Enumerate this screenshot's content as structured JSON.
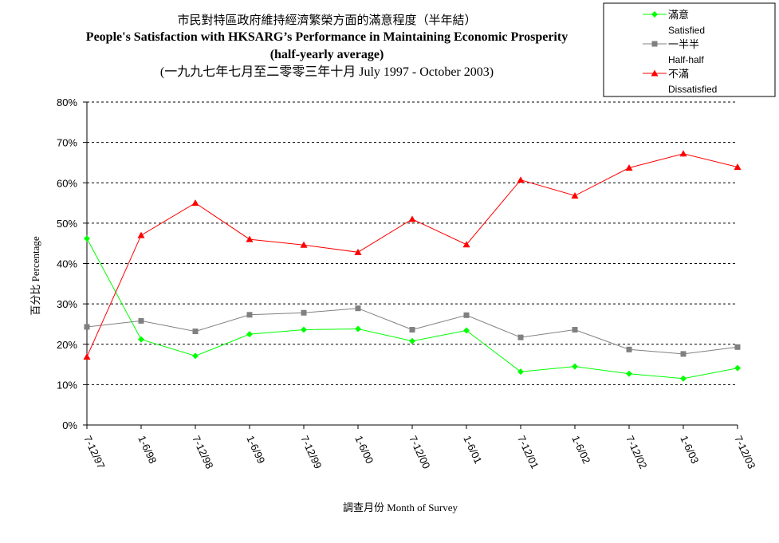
{
  "chart_data": {
    "type": "line",
    "title_zh": "市民對特區政府維持經濟繁榮方面的滿意程度（半年結）",
    "title_en": "People's Satisfaction with HKSARG’s Performance in Maintaining Economic Prosperity",
    "subtitle": "(half-yearly average)",
    "period": "(一九九七年七月至二零零三年十月 July 1997 - October 2003)",
    "xlabel": "調查月份 Month of Survey",
    "ylabel": "百分比 Percentage",
    "ylim": [
      0,
      80
    ],
    "yticks": [
      "0%",
      "10%",
      "20%",
      "30%",
      "40%",
      "50%",
      "60%",
      "70%",
      "80%"
    ],
    "grid": true,
    "legend_position": "top-right",
    "categories": [
      "7-12/97",
      "1-6/98",
      "7-12/98",
      "1-6/99",
      "7-12/99",
      "1-6/00",
      "7-12/00",
      "1-6/01",
      "7-12/01",
      "1-6/02",
      "7-12/02",
      "1-6/03",
      "7-12/03"
    ],
    "series": [
      {
        "name": "滿意",
        "name_en": "Satisfied",
        "color": "#00ff00",
        "marker": "diamond",
        "values": [
          46.2,
          21.2,
          17.1,
          22.5,
          23.6,
          23.8,
          20.8,
          23.4,
          13.2,
          14.5,
          12.7,
          11.5,
          14.1
        ]
      },
      {
        "name": "一半半",
        "name_en": "Half-half",
        "color": "#808080",
        "marker": "square",
        "values": [
          24.3,
          25.8,
          23.2,
          27.3,
          27.8,
          28.9,
          23.6,
          27.2,
          21.7,
          23.6,
          18.7,
          17.6,
          19.3
        ]
      },
      {
        "name": "不滿",
        "name_en": "Dissatisfied",
        "color": "#ff0000",
        "marker": "triangle",
        "values": [
          16.9,
          47.0,
          55.0,
          46.0,
          44.6,
          42.8,
          51.0,
          44.7,
          60.7,
          56.8,
          63.7,
          67.2,
          63.9
        ]
      }
    ]
  }
}
